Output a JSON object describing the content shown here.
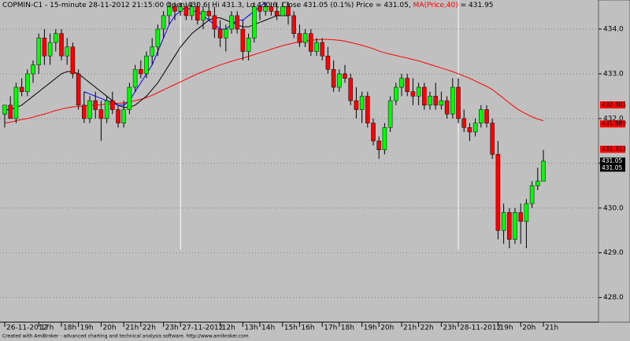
{
  "chart_data": {
    "type": "candlestick",
    "title_parts": [
      {
        "text": "COPMIN-C1 - 15-minute 28-11-2012 21:15:00 Open 430.6, Hi 431.3, Lo 430.6, Close 431.05 (0.1%) Price = 431.05, ",
        "color": "#000000"
      },
      {
        "text": "MA(Price,40)",
        "color": "#ff0000"
      },
      {
        "text": " = 431.95",
        "color": "#000000"
      }
    ],
    "footer": "Created with AmiBroker - advanced charting and technical analysis software. http://www.amibroker.com",
    "categories": [
      "26-11-2012",
      null,
      null,
      null,
      null,
      null,
      "17h",
      null,
      null,
      null,
      "18h",
      null,
      null,
      "19h",
      null,
      null,
      null,
      "20h",
      null,
      null,
      null,
      "21h",
      null,
      null,
      "22h",
      null,
      null,
      null,
      "23h",
      null,
      null,
      "27-11-2012",
      null,
      null,
      null,
      null,
      null,
      null,
      "12h",
      null,
      null,
      null,
      "13h",
      null,
      null,
      "14h",
      null,
      null,
      null,
      "15h",
      null,
      null,
      "16h",
      null,
      null,
      null,
      "17h",
      null,
      null,
      "18h",
      null,
      null,
      null,
      "19h",
      null,
      null,
      "20h",
      null,
      null,
      null,
      "21h",
      null,
      null,
      "22h",
      null,
      null,
      null,
      "23h",
      null,
      null,
      "28-11-2012",
      null,
      null,
      null,
      null,
      null,
      null,
      "19h",
      null,
      null,
      null,
      "20h",
      null,
      null,
      null,
      "21h"
    ],
    "open": [
      432.1,
      432.3,
      432.0,
      432.7,
      432.6,
      433.0,
      433.2,
      433.8,
      433.4,
      433.7,
      433.9,
      433.4,
      433.6,
      433.0,
      432.3,
      432.0,
      432.4,
      432.2,
      432.0,
      432.4,
      432.2,
      431.9,
      432.2,
      432.7,
      433.1,
      433.0,
      433.4,
      433.6,
      434.0,
      434.3,
      434.5,
      434.4,
      434.5,
      434.3,
      434.5,
      434.2,
      434.4,
      434.3,
      434.0,
      433.8,
      434.0,
      434.3,
      434.0,
      433.5,
      433.8,
      434.5,
      434.4,
      434.5,
      434.4,
      434.3,
      434.5,
      434.3,
      433.9,
      433.7,
      433.9,
      433.5,
      433.7,
      433.4,
      433.1,
      432.7,
      433.0,
      432.9,
      432.4,
      432.2,
      432.5,
      431.9,
      431.5,
      431.3,
      431.8,
      432.4,
      432.7,
      432.9,
      432.6,
      432.5,
      432.7,
      432.3,
      432.5,
      432.3,
      432.4,
      432.1,
      432.7,
      432.0,
      431.8,
      431.7,
      431.9,
      432.2,
      431.9,
      431.2,
      429.5,
      429.9,
      429.3,
      429.9,
      429.7,
      430.1,
      430.5,
      430.6
    ],
    "high": [
      432.3,
      432.5,
      432.8,
      432.9,
      433.1,
      433.3,
      433.9,
      434.0,
      433.9,
      434.0,
      434.0,
      433.8,
      433.7,
      433.1,
      432.6,
      432.5,
      432.6,
      432.4,
      432.5,
      432.6,
      432.3,
      432.4,
      432.8,
      433.2,
      433.3,
      433.5,
      433.8,
      434.1,
      434.4,
      434.6,
      434.6,
      434.6,
      434.6,
      434.6,
      434.6,
      434.5,
      434.6,
      434.5,
      434.2,
      434.1,
      434.4,
      434.4,
      434.2,
      433.9,
      434.6,
      434.6,
      434.6,
      434.6,
      434.6,
      434.6,
      434.6,
      434.4,
      434.1,
      434.0,
      434.0,
      433.8,
      433.8,
      433.6,
      433.3,
      433.1,
      433.2,
      433.0,
      432.7,
      432.6,
      432.6,
      432.0,
      431.6,
      431.9,
      432.5,
      432.8,
      433.0,
      433.0,
      432.9,
      432.8,
      432.8,
      432.6,
      432.8,
      432.6,
      432.5,
      432.9,
      432.9,
      432.2,
      431.9,
      432.0,
      432.3,
      432.3,
      432.0,
      431.5,
      430.1,
      430.0,
      430.0,
      430.1,
      430.2,
      430.6,
      430.9,
      431.3
    ],
    "low": [
      431.8,
      432.0,
      431.9,
      432.5,
      432.5,
      432.8,
      433.0,
      433.2,
      433.2,
      433.5,
      433.3,
      433.2,
      432.9,
      432.2,
      431.9,
      431.9,
      432.0,
      431.5,
      431.9,
      432.1,
      431.8,
      431.8,
      432.1,
      432.6,
      432.9,
      432.9,
      433.2,
      433.4,
      433.8,
      434.1,
      434.2,
      434.3,
      434.2,
      434.2,
      434.1,
      434.0,
      434.2,
      433.8,
      433.6,
      433.5,
      433.9,
      433.9,
      433.3,
      433.3,
      433.7,
      434.2,
      434.3,
      434.3,
      434.2,
      434.3,
      434.1,
      433.8,
      433.6,
      433.6,
      433.4,
      433.4,
      433.3,
      433.0,
      432.6,
      432.6,
      432.8,
      432.3,
      432.0,
      431.9,
      431.8,
      431.4,
      431.1,
      431.2,
      431.7,
      432.3,
      432.5,
      432.5,
      432.3,
      432.3,
      432.2,
      432.2,
      432.2,
      432.2,
      432.0,
      432.0,
      431.9,
      431.7,
      431.5,
      431.6,
      431.8,
      431.8,
      431.1,
      429.3,
      429.2,
      429.1,
      429.2,
      429.2,
      429.1,
      430.0,
      430.4,
      430.6
    ],
    "close": [
      432.3,
      432.0,
      432.7,
      432.6,
      433.0,
      433.2,
      433.8,
      433.4,
      433.7,
      433.9,
      433.4,
      433.6,
      433.0,
      432.3,
      432.0,
      432.4,
      432.2,
      432.0,
      432.4,
      432.2,
      431.9,
      432.2,
      432.7,
      433.1,
      433.0,
      433.4,
      433.6,
      434.0,
      434.3,
      434.5,
      434.4,
      434.5,
      434.3,
      434.5,
      434.2,
      434.4,
      434.3,
      434.0,
      433.8,
      434.0,
      434.3,
      434.0,
      433.5,
      433.8,
      434.5,
      434.4,
      434.5,
      434.4,
      434.3,
      434.5,
      434.3,
      433.9,
      433.7,
      433.9,
      433.5,
      433.7,
      433.4,
      433.1,
      432.7,
      433.0,
      432.9,
      432.4,
      432.2,
      432.5,
      431.9,
      431.5,
      431.3,
      431.8,
      432.4,
      432.7,
      432.9,
      432.6,
      432.5,
      432.7,
      432.3,
      432.5,
      432.3,
      432.4,
      432.1,
      432.7,
      432.0,
      431.8,
      431.7,
      431.9,
      432.2,
      431.9,
      431.2,
      429.5,
      429.9,
      429.3,
      429.9,
      429.7,
      430.1,
      430.5,
      430.6,
      431.05
    ],
    "up_color": "#00ff00",
    "down_color": "#ff0000",
    "series": [
      {
        "name": "MA(Price,40)",
        "color": "#ff0000",
        "values": [
          431.9,
          431.92,
          431.95,
          431.98,
          432.0,
          432.03,
          432.07,
          432.1,
          432.14,
          432.18,
          432.21,
          432.24,
          432.26,
          432.27,
          432.28,
          432.29,
          432.3,
          432.31,
          432.32,
          432.33,
          432.34,
          432.35,
          432.37,
          432.4,
          432.43,
          432.47,
          432.52,
          432.58,
          432.64,
          432.7,
          432.76,
          432.82,
          432.88,
          432.94,
          433.0,
          433.05,
          433.1,
          433.15,
          433.2,
          433.24,
          433.28,
          433.32,
          433.35,
          433.39,
          433.43,
          433.47,
          433.51,
          433.55,
          433.59,
          433.63,
          433.66,
          433.69,
          433.71,
          433.73,
          433.75,
          433.76,
          433.77,
          433.77,
          433.76,
          433.75,
          433.73,
          433.7,
          433.67,
          433.64,
          433.6,
          433.56,
          433.51,
          433.47,
          433.44,
          433.41,
          433.38,
          433.35,
          433.32,
          433.29,
          433.25,
          433.21,
          433.17,
          433.13,
          433.09,
          433.05,
          433.0,
          432.95,
          432.9,
          432.84,
          432.78,
          432.72,
          432.65,
          432.55,
          432.45,
          432.35,
          432.25,
          432.17,
          432.1,
          432.04,
          431.99,
          431.95
        ]
      },
      {
        "color": "#000000",
        "values": [
          432.2,
          432.2,
          432.25,
          432.3,
          432.4,
          432.5,
          432.6,
          432.7,
          432.8,
          432.9,
          433.0,
          433.05,
          433.05,
          433.0,
          432.9,
          432.8,
          432.7,
          432.6,
          432.5,
          432.4,
          432.3,
          432.25,
          432.25,
          432.3,
          432.4,
          432.5,
          432.65,
          432.8,
          433.0,
          433.2,
          433.4,
          433.6,
          433.75,
          433.9,
          434.0,
          434.1,
          434.2,
          434.25,
          434.25,
          434.2,
          434.15,
          434.1,
          434.05,
          434.05,
          434.1,
          434.15,
          434.2,
          434.25,
          434.3,
          434.3,
          434.3,
          null,
          null,
          null,
          null,
          null,
          null,
          null,
          null,
          null,
          null,
          null,
          null,
          null,
          null,
          null,
          null,
          null,
          null,
          null,
          null,
          null,
          null,
          null,
          null,
          null,
          null,
          null,
          null,
          null,
          null,
          null,
          null,
          null,
          null,
          null,
          null,
          null,
          null,
          null,
          null,
          null,
          null,
          null,
          null,
          null
        ]
      },
      {
        "color": "#0000ff",
        "values": [
          null,
          null,
          null,
          null,
          null,
          null,
          null,
          null,
          null,
          null,
          null,
          null,
          null,
          null,
          432.6,
          432.55,
          432.5,
          432.45,
          432.4,
          432.35,
          432.3,
          432.3,
          432.4,
          432.6,
          432.8,
          433.0,
          433.2,
          433.5,
          433.8,
          434.1,
          434.3,
          434.4,
          434.5,
          434.4,
          434.4,
          434.3,
          434.2,
          434.1,
          434.0,
          434.0,
          434.1,
          434.2,
          434.2,
          434.3,
          434.4,
          434.5,
          434.6,
          null,
          null,
          null,
          null,
          null,
          null,
          null,
          null,
          null,
          null,
          null,
          null,
          null,
          null,
          null,
          null,
          null,
          null,
          null,
          null,
          null,
          null,
          null,
          null,
          null,
          null,
          null,
          null,
          null,
          null,
          null,
          null,
          null,
          null,
          null,
          null,
          null,
          null,
          null,
          null,
          null,
          null,
          null,
          null,
          null,
          null,
          null,
          null,
          null
        ]
      }
    ],
    "price_tags": [
      {
        "value": 432.305,
        "label": "432.305",
        "color": "#ff0000"
      },
      {
        "value": 431.88,
        "label": "431.880",
        "color": "#ff0000"
      },
      {
        "value": 431.313,
        "label": "431.313",
        "color": "#ff0000"
      },
      {
        "value": 431.05,
        "label": "431.05",
        "color": "#000000"
      },
      {
        "value": 431.05,
        "label": "431.05",
        "color": "#000000"
      }
    ],
    "ylim": [
      427.45,
      434.65
    ],
    "yticks": [
      {
        "value": 428,
        "label": "428.0"
      },
      {
        "value": 429,
        "label": "429.0"
      },
      {
        "value": 430,
        "label": "430.0"
      },
      {
        "value": 431,
        "label": "431.0"
      },
      {
        "value": 432,
        "label": "432.0"
      },
      {
        "value": 433,
        "label": "433.0"
      },
      {
        "value": 434,
        "label": "434.0"
      }
    ],
    "grid": true
  }
}
